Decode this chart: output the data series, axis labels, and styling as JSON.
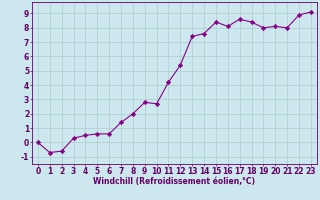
{
  "x": [
    0,
    1,
    2,
    3,
    4,
    5,
    6,
    7,
    8,
    9,
    10,
    11,
    12,
    13,
    14,
    15,
    16,
    17,
    18,
    19,
    20,
    21,
    22,
    23
  ],
  "y": [
    0.0,
    -0.7,
    -0.6,
    0.3,
    0.5,
    0.6,
    0.6,
    1.4,
    2.0,
    2.8,
    2.7,
    4.2,
    5.4,
    7.4,
    7.6,
    8.4,
    8.1,
    8.6,
    8.4,
    8.0,
    8.1,
    8.0,
    8.9,
    9.1
  ],
  "line_color": "#880088",
  "marker": "D",
  "marker_size": 2.2,
  "bg_color": "#cce8ee",
  "grid_color": "#aacccc",
  "xlabel": "Windchill (Refroidissement éolien,°C)",
  "xlabel_color": "#660066",
  "xlabel_fontsize": 5.5,
  "tick_color": "#660066",
  "tick_fontsize": 5.5,
  "ylim": [
    -1.5,
    9.8
  ],
  "xlim": [
    -0.5,
    23.5
  ],
  "yticks": [
    -1,
    0,
    1,
    2,
    3,
    4,
    5,
    6,
    7,
    8,
    9
  ],
  "xticks": [
    0,
    1,
    2,
    3,
    4,
    5,
    6,
    7,
    8,
    9,
    10,
    11,
    12,
    13,
    14,
    15,
    16,
    17,
    18,
    19,
    20,
    21,
    22,
    23
  ]
}
